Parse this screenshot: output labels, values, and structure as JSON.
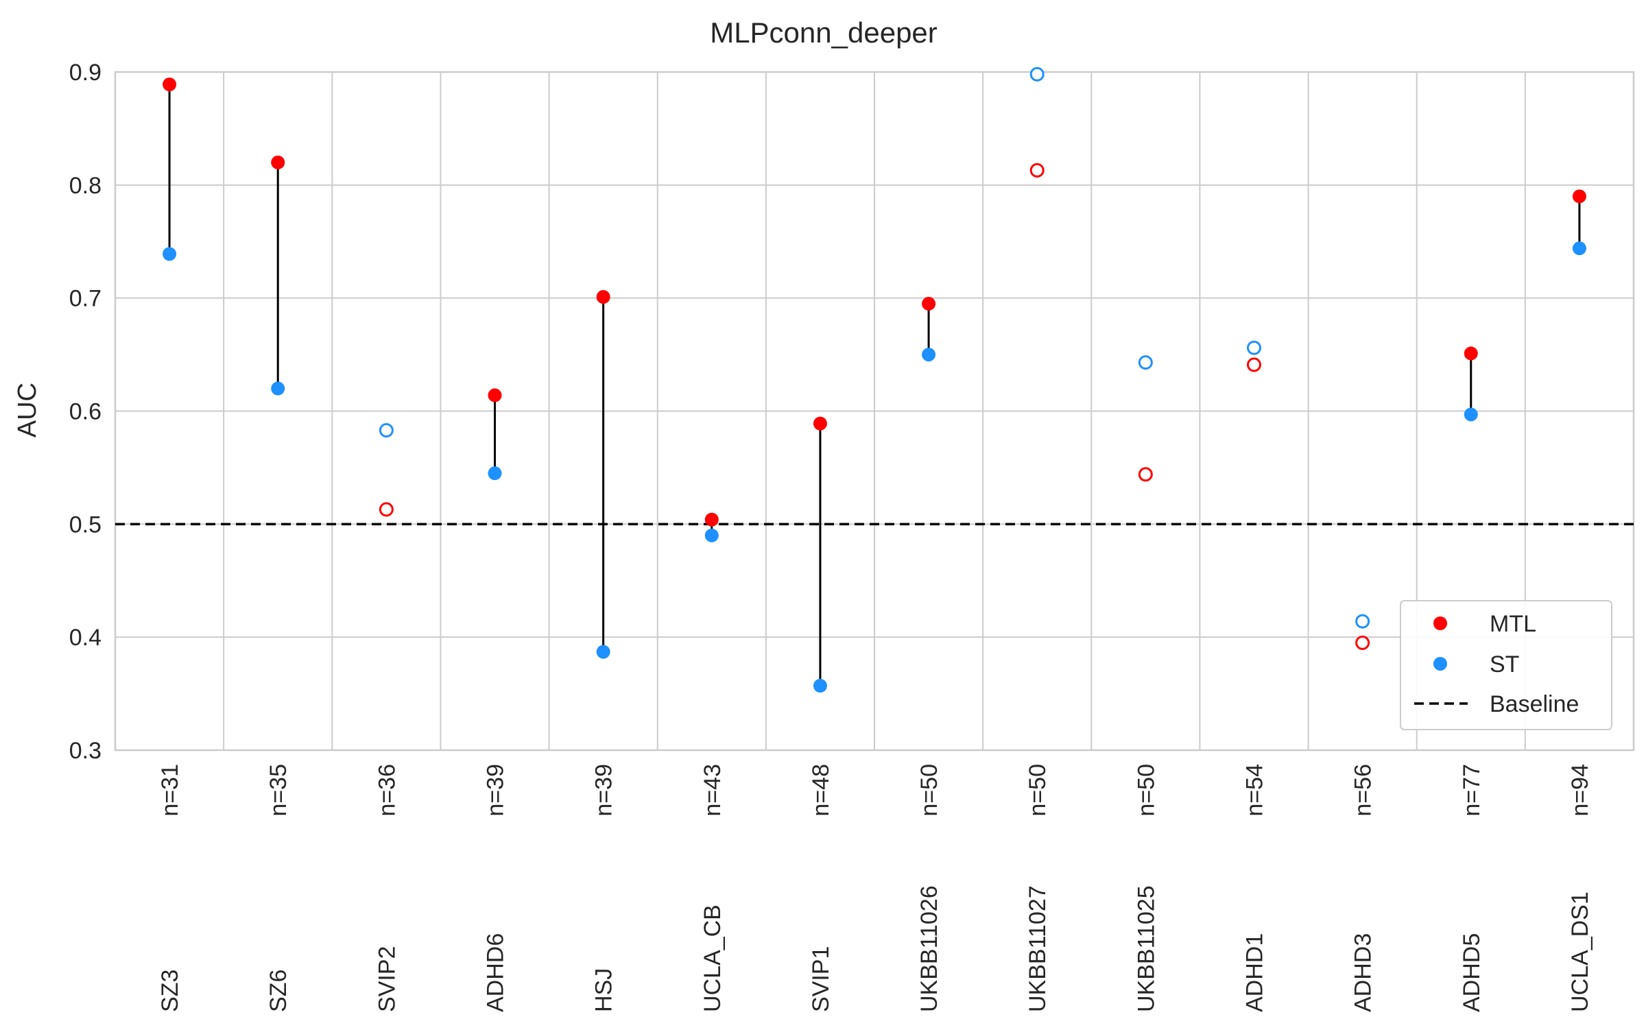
{
  "chart_data": {
    "type": "scatter",
    "title": "MLPconn_deeper",
    "xlabel": "",
    "ylabel": "AUC",
    "ylim": [
      0.3,
      0.9
    ],
    "yticks": [
      0.3,
      0.4,
      0.5,
      0.6,
      0.7,
      0.8,
      0.9
    ],
    "grid": true,
    "legend_position": "lower-right",
    "baseline": 0.5,
    "categories": [
      "SZ3",
      "SZ6",
      "SVIP2",
      "ADHD6",
      "HSJ",
      "UCLA_CB",
      "SVIP1",
      "UKBB11026",
      "UKBB11027",
      "UKBB11025",
      "ADHD1",
      "ADHD3",
      "ADHD5",
      "UCLA_DS1"
    ],
    "sample_sizes": [
      "n=31",
      "n=35",
      "n=36",
      "n=39",
      "n=39",
      "n=43",
      "n=48",
      "n=50",
      "n=50",
      "n=50",
      "n=54",
      "n=56",
      "n=77",
      "n=94"
    ],
    "series": [
      {
        "name": "MTL",
        "color": "#ff0000",
        "values": [
          0.889,
          0.82,
          0.513,
          0.614,
          0.701,
          0.504,
          0.589,
          0.695,
          0.813,
          0.544,
          0.641,
          0.395,
          0.651,
          0.79
        ]
      },
      {
        "name": "ST",
        "color": "#1e90ff",
        "values": [
          0.739,
          0.62,
          0.583,
          0.545,
          0.387,
          0.49,
          0.357,
          0.65,
          0.898,
          0.643,
          0.656,
          0.414,
          0.597,
          0.744
        ]
      }
    ],
    "significant": [
      true,
      true,
      false,
      true,
      true,
      true,
      true,
      true,
      false,
      false,
      false,
      false,
      true,
      true
    ],
    "legend": {
      "mtl": "MTL",
      "st": "ST",
      "baseline": "Baseline"
    }
  }
}
